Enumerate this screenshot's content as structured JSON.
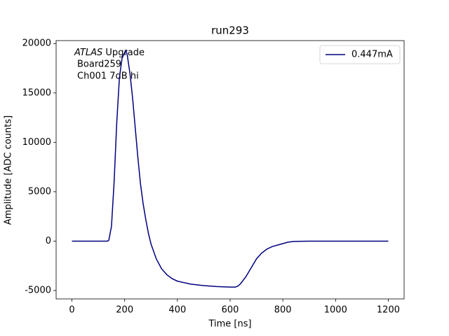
{
  "chart_data": {
    "type": "line",
    "title": "run293",
    "x_label": "Time [ns]",
    "y_label": "Amplitude [ADC counts]",
    "annotation": {
      "emphasis": "ATLAS",
      "lines": [
        "Upgrade",
        "Board259",
        "Ch001 7dB hi"
      ]
    },
    "x": [
      0,
      100,
      135,
      140,
      150,
      160,
      170,
      180,
      190,
      200,
      205,
      210,
      220,
      230,
      240,
      250,
      260,
      270,
      280,
      290,
      300,
      320,
      340,
      360,
      380,
      400,
      450,
      500,
      550,
      600,
      620,
      630,
      640,
      660,
      680,
      700,
      720,
      740,
      760,
      780,
      800,
      820,
      840,
      860,
      900,
      1000,
      1100,
      1200
    ],
    "series": [
      {
        "name": "0.447mA",
        "color": "#00007f",
        "values": [
          0,
          0,
          0,
          100,
          1500,
          6000,
          12000,
          16500,
          18500,
          19100,
          19300,
          18800,
          17000,
          14500,
          11500,
          8500,
          5800,
          3800,
          2200,
          800,
          -300,
          -1800,
          -2800,
          -3400,
          -3800,
          -4050,
          -4350,
          -4500,
          -4600,
          -4650,
          -4650,
          -4550,
          -4300,
          -3600,
          -2700,
          -1800,
          -1200,
          -800,
          -550,
          -400,
          -250,
          -100,
          -40,
          -20,
          0,
          0,
          0,
          0
        ]
      }
    ],
    "xlim": [
      -60,
      1260
    ],
    "ylim": [
      -5850,
      20300
    ],
    "xticks": [
      0,
      200,
      400,
      600,
      800,
      1000,
      1200
    ],
    "yticks": [
      -5000,
      0,
      5000,
      10000,
      15000,
      20000
    ],
    "legend": "upper right",
    "grid": false
  }
}
